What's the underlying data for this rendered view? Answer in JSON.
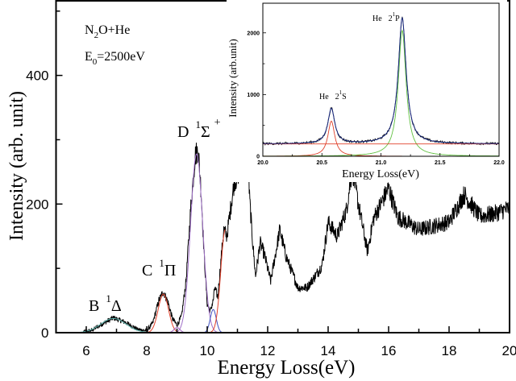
{
  "chart_data": {
    "type": "line",
    "xlabel": "Energy Loss(eV)",
    "ylabel": "Intensity (arb. unit)",
    "xlim": [
      5,
      20
    ],
    "ylim": [
      0,
      516
    ],
    "xticks": [
      6,
      8,
      10,
      12,
      14,
      16,
      18,
      20
    ],
    "yticks": [
      0,
      200,
      400
    ],
    "grid": false,
    "annotations": {
      "gas": {
        "main": "N",
        "sub": "2",
        "rest": "O+He"
      },
      "energy": {
        "main": "E",
        "sub": "0",
        "rest": "=2500eV"
      },
      "state_b": {
        "letter": "B",
        "sup": "1",
        "symbol": "Δ"
      },
      "state_c": {
        "letter": "C",
        "sup": "1",
        "symbol": "Π"
      },
      "state_d": {
        "letter": "D",
        "sup": "1",
        "symbol": "Σ",
        "sup2": "+"
      }
    },
    "spectrum": {
      "color": "#000000",
      "points": [
        [
          5,
          0
        ],
        [
          5.8,
          0
        ],
        [
          6.2,
          4
        ],
        [
          6.5,
          13
        ],
        [
          6.9,
          23
        ],
        [
          7.3,
          16
        ],
        [
          7.7,
          5
        ],
        [
          8.0,
          3
        ],
        [
          8.2,
          15
        ],
        [
          8.4,
          50
        ],
        [
          8.55,
          64
        ],
        [
          8.7,
          48
        ],
        [
          8.85,
          22
        ],
        [
          9.0,
          12
        ],
        [
          9.15,
          25
        ],
        [
          9.3,
          80
        ],
        [
          9.45,
          190
        ],
        [
          9.6,
          275
        ],
        [
          9.7,
          285
        ],
        [
          9.8,
          220
        ],
        [
          9.9,
          120
        ],
        [
          10.0,
          45
        ],
        [
          10.1,
          33
        ],
        [
          10.2,
          50
        ],
        [
          10.25,
          70
        ],
        [
          10.35,
          55
        ],
        [
          10.45,
          110
        ],
        [
          10.55,
          160
        ],
        [
          10.65,
          150
        ],
        [
          10.75,
          185
        ],
        [
          10.9,
          236
        ],
        [
          11.0,
          240
        ],
        [
          11.1,
          262
        ],
        [
          11.25,
          330
        ],
        [
          11.3,
          340
        ],
        [
          11.4,
          210
        ],
        [
          11.5,
          143
        ],
        [
          11.6,
          88
        ],
        [
          11.75,
          140
        ],
        [
          11.9,
          120
        ],
        [
          12.1,
          80
        ],
        [
          12.4,
          160
        ],
        [
          12.6,
          120
        ],
        [
          13.0,
          70
        ],
        [
          13.3,
          70
        ],
        [
          13.6,
          90
        ],
        [
          13.8,
          105
        ],
        [
          14.0,
          172
        ],
        [
          14.3,
          150
        ],
        [
          14.6,
          190
        ],
        [
          14.8,
          255
        ],
        [
          15.0,
          200
        ],
        [
          15.3,
          126
        ],
        [
          15.5,
          177
        ],
        [
          16.0,
          225
        ],
        [
          16.3,
          180
        ],
        [
          17.0,
          160
        ],
        [
          18.0,
          172
        ],
        [
          18.5,
          215
        ],
        [
          19.0,
          181
        ],
        [
          19.5,
          185
        ],
        [
          20.0,
          194
        ]
      ]
    },
    "fit_components": [
      {
        "center": 6.9,
        "amplitude": 22,
        "sigma": 0.42,
        "color": "#5fb8b0"
      },
      {
        "center": 8.55,
        "amplitude": 60,
        "sigma": 0.17,
        "color": "#e0402a"
      },
      {
        "center": 9.0,
        "amplitude": 8,
        "sigma": 0.1,
        "color": "#a060c0"
      },
      {
        "center": 9.65,
        "amplitude": 278,
        "sigma": 0.2,
        "color": "#a070c8"
      },
      {
        "center": 10.2,
        "amplitude": 36,
        "sigma": 0.1,
        "color": "#4050c0"
      },
      {
        "center": 10.6,
        "amplitude": 160,
        "sigma": 0.15,
        "color": "#e0402a",
        "x_max": 10.6
      }
    ],
    "inset": {
      "type": "line",
      "xlabel": "Energy Loss(eV)",
      "ylabel": "Intensity  (arb.unit)",
      "xlim": [
        20.0,
        22.0
      ],
      "ylim": [
        0,
        2480
      ],
      "xticks": [
        "20.0",
        "20.5",
        "21.0",
        "21.5",
        "22.0"
      ],
      "yticks": [
        "0",
        "1000",
        "2000"
      ],
      "baseline": 200,
      "peaks": [
        {
          "label": {
            "atom": "He",
            "num": "2",
            "sup": "1",
            "term": "S"
          },
          "center": 20.58,
          "amplitude": 570,
          "hwhm": 0.035,
          "color": "#e0402a"
        },
        {
          "label": {
            "atom": "He",
            "num": "2",
            "sup": "1",
            "term": "P"
          },
          "center": 21.18,
          "amplitude": 2040,
          "hwhm": 0.04,
          "color": "#60c040"
        }
      ],
      "total_color": "#1a2a80",
      "data_color": "#000000",
      "baseline_color": "#e0402a"
    }
  }
}
